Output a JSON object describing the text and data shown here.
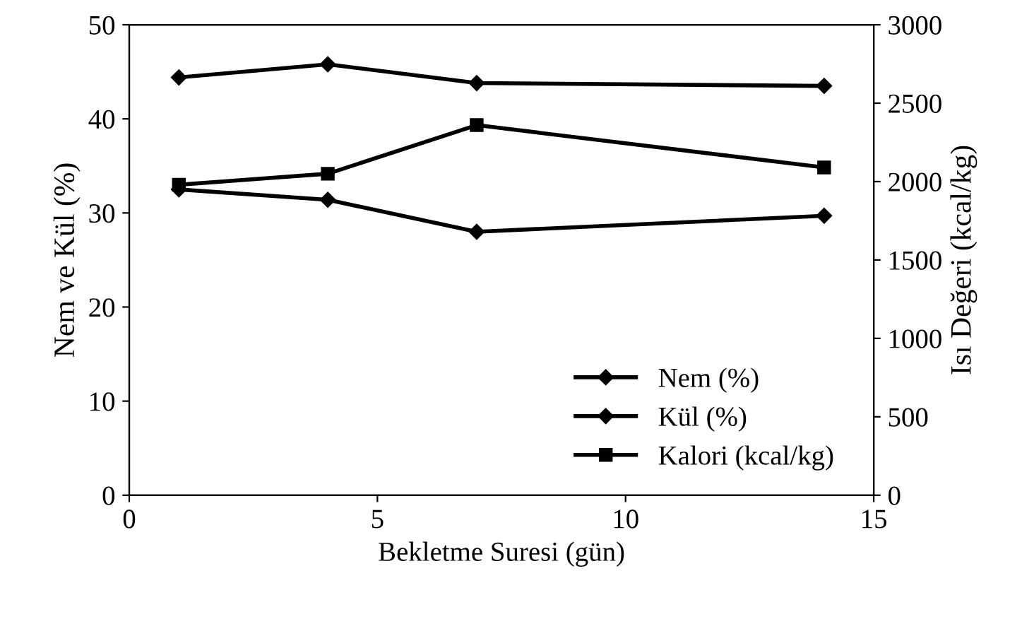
{
  "chart_data": {
    "type": "line",
    "xlabel": "Bekletme Suresi (gün)",
    "ylabel": "Nem ve Kül (%)",
    "y2label": "Isı Değeri (kcal/kg)",
    "xlim": [
      0,
      15
    ],
    "xticks": [
      0,
      5,
      10,
      15
    ],
    "ylim": [
      0,
      50
    ],
    "yticks": [
      0,
      10,
      20,
      30,
      40,
      50
    ],
    "y2lim": [
      0,
      3000
    ],
    "y2ticks": [
      0,
      500,
      1000,
      1500,
      2000,
      2500,
      3000
    ],
    "x": [
      1,
      4,
      7,
      14
    ],
    "series": [
      {
        "name": "Nem (%)",
        "color": "#000000",
        "marker": "diamond",
        "values": [
          32.5,
          31.4,
          28.0,
          29.7
        ]
      },
      {
        "name": "Kül (%)",
        "color": "#000000",
        "marker": "diamond",
        "values": [
          44.4,
          45.8,
          43.8,
          43.5
        ]
      },
      {
        "name": "Kalori (kcal/kg)",
        "color": "#000000",
        "marker": "square",
        "axis": "y2",
        "values": [
          1980,
          2050,
          2360,
          2090
        ]
      }
    ],
    "legend": "bottom right",
    "grid": false,
    "line_style": "solid"
  }
}
